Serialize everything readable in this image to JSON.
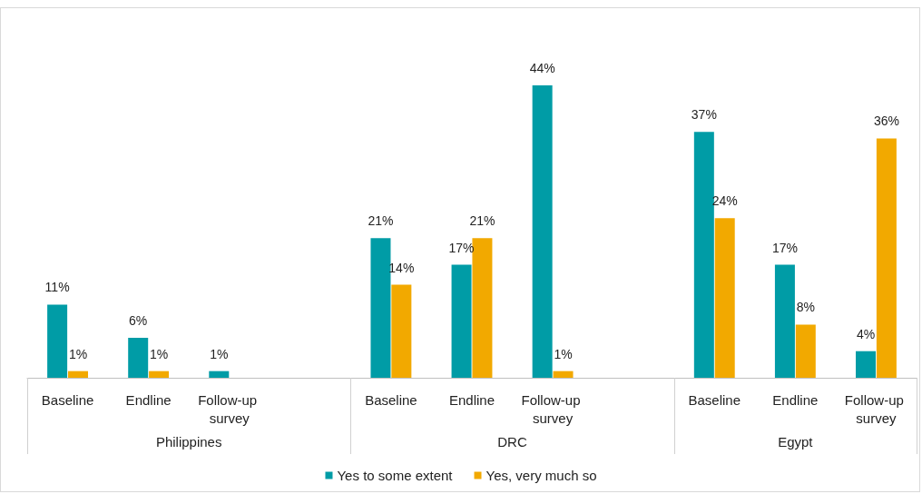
{
  "chart_data": {
    "type": "bar",
    "categories": [
      "Baseline",
      "Endline",
      "Follow-up survey",
      null,
      "Baseline",
      "Endline",
      "Follow-up survey",
      null,
      "Baseline",
      "Endline",
      "Follow-up survey"
    ],
    "series": [
      {
        "name": "Yes to some extent",
        "color": "#009ca6",
        "values": [
          11,
          6,
          1,
          null,
          21,
          17,
          44,
          null,
          37,
          17,
          4
        ],
        "value_labels": [
          "11%",
          "6%",
          "1%",
          null,
          "21%",
          "17%",
          "44%",
          null,
          "37%",
          "17%",
          "4%"
        ]
      },
      {
        "name": "Yes, very much so",
        "color": "#f2a900",
        "values": [
          1,
          1,
          null,
          null,
          14,
          21,
          1,
          null,
          24,
          8,
          36
        ],
        "value_labels": [
          "1%",
          "1%",
          null,
          null,
          "14%",
          "21%",
          "1%",
          null,
          "24%",
          "8%",
          "36%"
        ]
      }
    ],
    "annotations": [
      "Philippines",
      "DRC",
      "Egypt"
    ],
    "legend": "bottom",
    "grid": false
  }
}
